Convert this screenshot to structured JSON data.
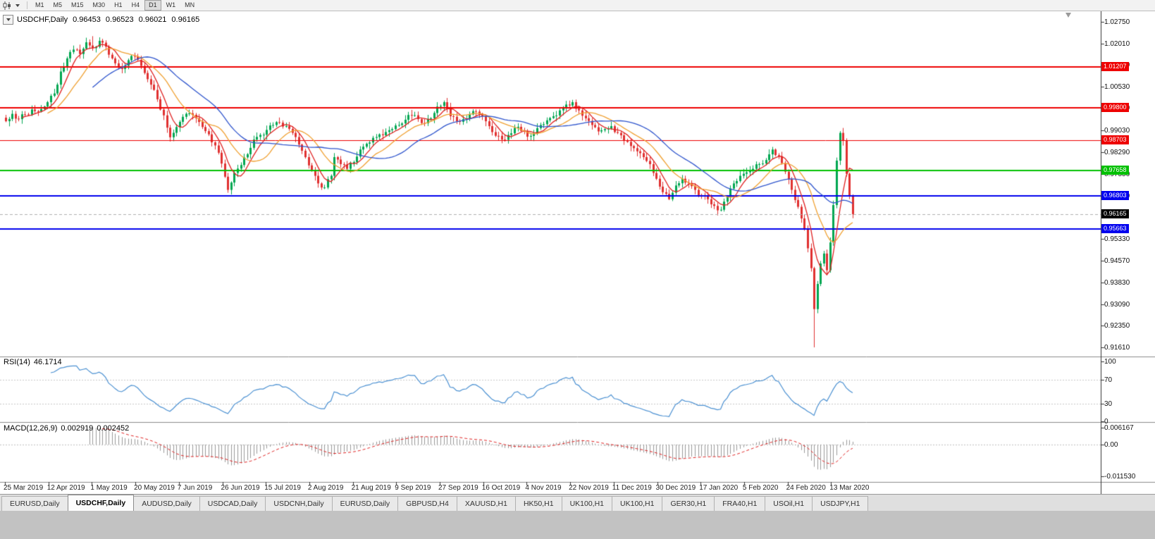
{
  "toolbar": {
    "timeframes": [
      "M1",
      "M5",
      "M15",
      "M30",
      "H1",
      "H4",
      "D1",
      "W1",
      "MN"
    ],
    "active_timeframe": "D1",
    "icons": {
      "chart_type": "candlestick-chart-icon",
      "dropdown": "chevron-down-icon"
    }
  },
  "chart": {
    "title": {
      "symbol": "USDCHF,Daily",
      "open": "0.96453",
      "high": "0.96523",
      "low": "0.96021",
      "close": "0.96165"
    },
    "price_axis": {
      "ticks": [
        "1.02750",
        "1.02010",
        "1.01280",
        "1.00530",
        "0.99800",
        "0.99030",
        "0.98290",
        "0.97550",
        "0.96800",
        "0.95330",
        "0.94570",
        "0.93830",
        "0.93090",
        "0.92350",
        "0.91610"
      ]
    },
    "current_price": {
      "value": "0.96165",
      "bg": "#000000",
      "fg": "#ffffff"
    },
    "levels": [
      {
        "value": 1.01207,
        "label": "1.01207",
        "color": "#ee0000",
        "width": 2
      },
      {
        "value": 0.998,
        "label": "0.99800",
        "color": "#ee0000",
        "width": 2
      },
      {
        "value": 0.98703,
        "label": "0.98703",
        "color": "#ee0000",
        "width": 1
      },
      {
        "value": 0.97658,
        "label": "0.97658",
        "color": "#00c000",
        "width": 2
      },
      {
        "value": 0.96803,
        "label": "0.96803",
        "color": "#0000ee",
        "width": 2
      },
      {
        "value": 0.95663,
        "label": "0.95663",
        "color": "#0000ee",
        "width": 2
      }
    ],
    "date_axis": [
      "25 Mar 2019",
      "12 Apr 2019",
      "1 May 2019",
      "20 May 2019",
      "7 Jun 2019",
      "26 Jun 2019",
      "15 Jul 2019",
      "2 Aug 2019",
      "21 Aug 2019",
      "9 Sep 2019",
      "27 Sep 2019",
      "16 Oct 2019",
      "4 Nov 2019",
      "22 Nov 2019",
      "11 Dec 2019",
      "30 Dec 2019",
      "17 Jan 2020",
      "5 Feb 2020",
      "24 Feb 2020",
      "13 Mar 2020"
    ]
  },
  "rsi": {
    "label": "RSI(14)",
    "value": "46.1714",
    "axis": [
      "100",
      "70",
      "30",
      "0"
    ],
    "levels": [
      70,
      30
    ]
  },
  "macd": {
    "label": "MACD(12,26,9)",
    "macd_value": "0.002919",
    "signal_value": "0.002452",
    "axis": [
      "0.006167",
      "0.00",
      "-0.011530"
    ]
  },
  "tabbar": {
    "tabs": [
      "EURUSD,Daily",
      "USDCHF,Daily",
      "AUDUSD,Daily",
      "USDCAD,Daily",
      "USDCNH,Daily",
      "EURUSD,Daily",
      "GBPUSD,H4",
      "XAUUSD,H1",
      "HK50,H1",
      "UK100,H1",
      "UK100,H1",
      "GER30,H1",
      "FRA40,H1",
      "USOil,H1",
      "USDJPY,H1"
    ],
    "active_index": 1
  },
  "colors": {
    "up": "#00a651",
    "down": "#e03030",
    "bid_line": "#b0b0b0",
    "rsi_line": "#4a90d2",
    "rsi_level": "#c8c8c8",
    "macd_hist": "#999999",
    "macd_signal": "#e02020",
    "axis_border": "#333333",
    "panel_sep": "#8c8c8c"
  },
  "chart_data": {
    "type": "candlestick",
    "symbol": "USDCHF",
    "timeframe": "Daily",
    "ohlc_current": {
      "open": 0.96453,
      "high": 0.96523,
      "low": 0.96021,
      "close": 0.96165
    },
    "visible_price_range": {
      "low": 0.9161,
      "high": 1.0226
    },
    "axis_range": {
      "top_tick": 1.0275,
      "bottom_tick": 0.9161
    },
    "candle_count": 264,
    "candle_step": 4.57,
    "noise_seed": 9,
    "noise_amp": 0.0018,
    "close_anchors": [
      [
        0,
        0.9935
      ],
      [
        2,
        0.996
      ],
      [
        4,
        0.9942
      ],
      [
        6,
        0.9958
      ],
      [
        8,
        0.9975
      ],
      [
        10,
        0.9968
      ],
      [
        13,
        1.0
      ],
      [
        15,
        1.003
      ],
      [
        17,
        1.0105
      ],
      [
        19,
        1.015
      ],
      [
        21,
        1.018
      ],
      [
        23,
        1.0165
      ],
      [
        25,
        1.0205
      ],
      [
        27,
        1.0185
      ],
      [
        29,
        1.021
      ],
      [
        31,
        1.019
      ],
      [
        33,
        1.015
      ],
      [
        35,
        1.0118
      ],
      [
        37,
        1.0125
      ],
      [
        39,
        1.0158
      ],
      [
        41,
        1.0145
      ],
      [
        43,
        1.01
      ],
      [
        45,
        1.006
      ],
      [
        47,
        1.001
      ],
      [
        49,
        0.9955
      ],
      [
        51,
        0.988
      ],
      [
        53,
        0.9915
      ],
      [
        55,
        0.995
      ],
      [
        57,
        0.9962
      ],
      [
        59,
        0.9945
      ],
      [
        61,
        0.9915
      ],
      [
        63,
        0.989
      ],
      [
        65,
        0.9852
      ],
      [
        67,
        0.979
      ],
      [
        68,
        0.9745
      ],
      [
        69,
        0.97
      ],
      [
        70,
        0.9725
      ],
      [
        71,
        0.9758
      ],
      [
        73,
        0.9785
      ],
      [
        75,
        0.9822
      ],
      [
        77,
        0.9872
      ],
      [
        79,
        0.9888
      ],
      [
        81,
        0.9905
      ],
      [
        83,
        0.9922
      ],
      [
        85,
        0.993
      ],
      [
        87,
        0.9918
      ],
      [
        89,
        0.9895
      ],
      [
        91,
        0.9855
      ],
      [
        93,
        0.9812
      ],
      [
        95,
        0.9768
      ],
      [
        97,
        0.9722
      ],
      [
        99,
        0.9708
      ],
      [
        101,
        0.9748
      ],
      [
        102,
        0.9812
      ],
      [
        104,
        0.9788
      ],
      [
        106,
        0.9772
      ],
      [
        108,
        0.9795
      ],
      [
        110,
        0.9838
      ],
      [
        112,
        0.9858
      ],
      [
        114,
        0.9878
      ],
      [
        116,
        0.989
      ],
      [
        118,
        0.9898
      ],
      [
        120,
        0.9908
      ],
      [
        122,
        0.9922
      ],
      [
        124,
        0.994
      ],
      [
        126,
        0.9955
      ],
      [
        128,
        0.9942
      ],
      [
        130,
        0.9928
      ],
      [
        132,
        0.9945
      ],
      [
        134,
        0.9985
      ],
      [
        136,
        1.0
      ],
      [
        138,
        0.9952
      ],
      [
        140,
        0.9935
      ],
      [
        142,
        0.9942
      ],
      [
        144,
        0.9958
      ],
      [
        146,
        0.9968
      ],
      [
        148,
        0.9952
      ],
      [
        150,
        0.9918
      ],
      [
        152,
        0.9885
      ],
      [
        154,
        0.9872
      ],
      [
        156,
        0.9888
      ],
      [
        158,
        0.9912
      ],
      [
        160,
        0.9902
      ],
      [
        162,
        0.9882
      ],
      [
        164,
        0.9892
      ],
      [
        166,
        0.9922
      ],
      [
        168,
        0.9938
      ],
      [
        170,
        0.9952
      ],
      [
        172,
        0.9972
      ],
      [
        174,
        0.9992
      ],
      [
        176,
        1.0
      ],
      [
        178,
        0.9972
      ],
      [
        180,
        0.9945
      ],
      [
        182,
        0.9922
      ],
      [
        184,
        0.99
      ],
      [
        186,
        0.9908
      ],
      [
        188,
        0.9918
      ],
      [
        190,
        0.9895
      ],
      [
        192,
        0.9868
      ],
      [
        194,
        0.985
      ],
      [
        196,
        0.9832
      ],
      [
        198,
        0.9812
      ],
      [
        200,
        0.9788
      ],
      [
        202,
        0.9738
      ],
      [
        204,
        0.9692
      ],
      [
        206,
        0.9668
      ],
      [
        208,
        0.9715
      ],
      [
        210,
        0.9738
      ],
      [
        212,
        0.9722
      ],
      [
        214,
        0.97
      ],
      [
        216,
        0.9682
      ],
      [
        218,
        0.9668
      ],
      [
        220,
        0.9645
      ],
      [
        222,
        0.9632
      ],
      [
        224,
        0.9675
      ],
      [
        226,
        0.9722
      ],
      [
        228,
        0.9748
      ],
      [
        230,
        0.976
      ],
      [
        232,
        0.9772
      ],
      [
        234,
        0.9788
      ],
      [
        236,
        0.9802
      ],
      [
        238,
        0.9838
      ],
      [
        240,
        0.9815
      ],
      [
        242,
        0.9762
      ],
      [
        244,
        0.97
      ],
      [
        246,
        0.9642
      ],
      [
        248,
        0.9565
      ],
      [
        249,
        0.95
      ],
      [
        250,
        0.9432
      ],
      [
        251,
        0.9292
      ],
      [
        252,
        0.9378
      ],
      [
        253,
        0.9448
      ],
      [
        254,
        0.9482
      ],
      [
        255,
        0.9425
      ],
      [
        256,
        0.952
      ],
      [
        257,
        0.9648
      ],
      [
        258,
        0.98
      ],
      [
        259,
        0.9895
      ],
      [
        260,
        0.9868
      ],
      [
        261,
        0.9755
      ],
      [
        262,
        0.968
      ],
      [
        263,
        0.9617
      ]
    ],
    "overrides": {
      "27": {
        "high": 1.0226
      },
      "29": {
        "high": 1.0222
      },
      "251": {
        "low": 0.9161
      }
    },
    "moving_averages": [
      {
        "period": 6,
        "color": "#e02020"
      },
      {
        "period": 14,
        "color": "#f0a030"
      },
      {
        "period": 28,
        "color": "#2f55cd"
      }
    ]
  }
}
